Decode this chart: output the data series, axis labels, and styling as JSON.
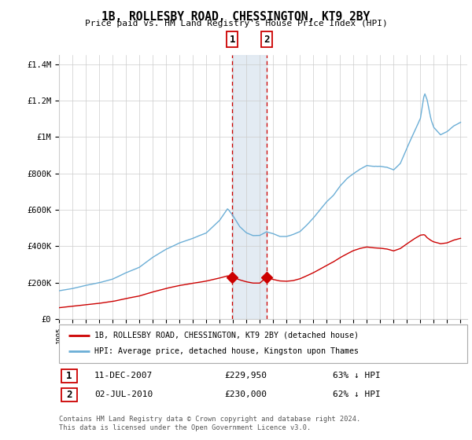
{
  "title": "1B, ROLLESBY ROAD, CHESSINGTON, KT9 2BY",
  "subtitle": "Price paid vs. HM Land Registry's House Price Index (HPI)",
  "hpi_label": "HPI: Average price, detached house, Kingston upon Thames",
  "property_label": "1B, ROLLESBY ROAD, CHESSINGTON, KT9 2BY (detached house)",
  "footer": "Contains HM Land Registry data © Crown copyright and database right 2024.\nThis data is licensed under the Open Government Licence v3.0.",
  "hpi_color": "#6baed6",
  "property_color": "#cc0000",
  "highlight_bg": "#dce6f1",
  "purchases": [
    {
      "label": "1",
      "date": "11-DEC-2007",
      "price": 229950,
      "pct": "63% ↓ HPI",
      "x": 2007.95
    },
    {
      "label": "2",
      "date": "02-JUL-2010",
      "price": 230000,
      "pct": "62% ↓ HPI",
      "x": 2010.5
    }
  ],
  "xlim": [
    1995,
    2025.5
  ],
  "ylim": [
    0,
    1450000
  ],
  "yticks": [
    0,
    200000,
    400000,
    600000,
    800000,
    1000000,
    1200000,
    1400000
  ],
  "ytick_labels": [
    "£0",
    "£200K",
    "£400K",
    "£600K",
    "£800K",
    "£1M",
    "£1.2M",
    "£1.4M"
  ],
  "xtick_years": [
    1995,
    1996,
    1997,
    1998,
    1999,
    2000,
    2001,
    2002,
    2003,
    2004,
    2005,
    2006,
    2007,
    2008,
    2009,
    2010,
    2011,
    2012,
    2013,
    2014,
    2015,
    2016,
    2017,
    2018,
    2019,
    2020,
    2021,
    2022,
    2023,
    2024,
    2025
  ]
}
